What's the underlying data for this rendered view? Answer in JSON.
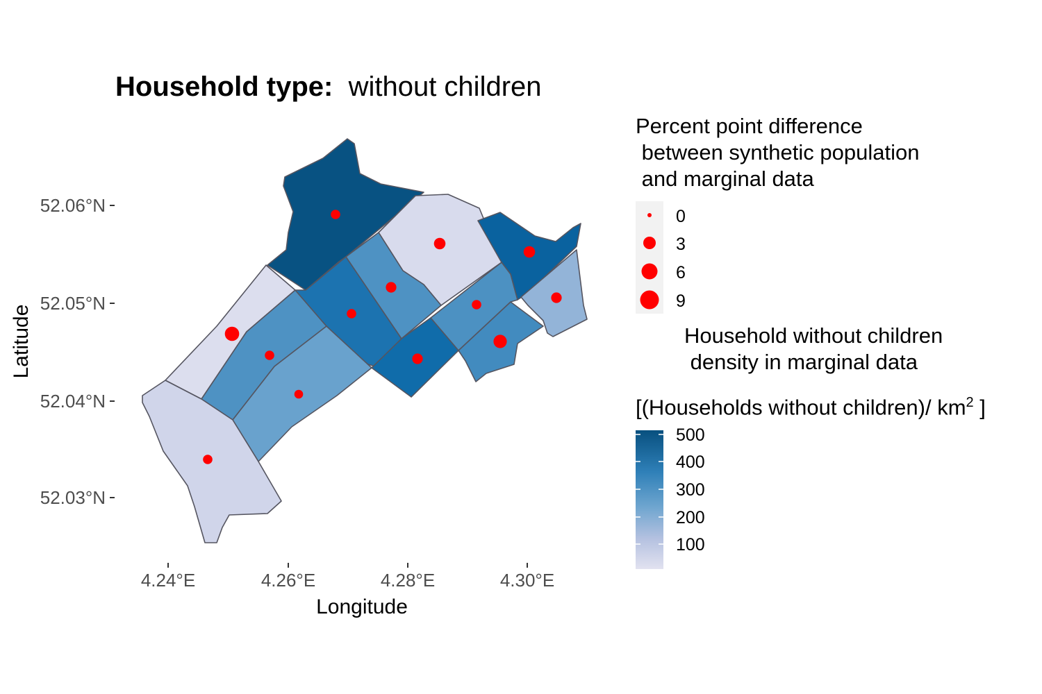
{
  "title": {
    "bold": "Household type:",
    "normal": "without children"
  },
  "axes": {
    "x_label": "Longitude",
    "y_label": "Latitude",
    "x_ticks": [
      "4.24°E",
      "4.26°E",
      "4.28°E",
      "4.30°E"
    ],
    "y_ticks": [
      "52.06°N",
      "52.05°N",
      "52.04°N",
      "52.03°N"
    ]
  },
  "legend_size": {
    "title_lines": [
      "Percent point difference",
      " between synthetic population",
      " and marginal data"
    ],
    "entries": [
      "0",
      "3",
      "6",
      "9"
    ]
  },
  "legend_fill": {
    "title_lines": [
      "Household without children",
      " density in marginal data"
    ],
    "unit_prefix": "[(Households without children)/ km",
    "unit_sup": "2",
    "unit_suffix": " ]",
    "ticks": [
      "500",
      "400",
      "300",
      "200",
      "100"
    ],
    "color_low": "#e2e2f0",
    "color_high": "#08507f"
  },
  "chart_data": {
    "type": "map",
    "xlim": [
      4.235,
      4.311
    ],
    "ylim": [
      52.024,
      52.068
    ],
    "fill_range": [
      0,
      520
    ],
    "point_color": "#ff0000",
    "districts": [
      {
        "density": 515,
        "diff": 1.5
      },
      {
        "density": 25,
        "diff": 3.5
      },
      {
        "density": 460,
        "diff": 3.5
      },
      {
        "density": 170,
        "diff": 2.5
      },
      {
        "density": 15,
        "diff": 7.5
      },
      {
        "density": 300,
        "diff": 1.5
      },
      {
        "density": 405,
        "diff": 1.5
      },
      {
        "density": 300,
        "diff": 2.5
      },
      {
        "density": 245,
        "diff": 1
      },
      {
        "density": 430,
        "diff": 2.5
      },
      {
        "density": 325,
        "diff": 6
      },
      {
        "density": 305,
        "diff": 1.5
      },
      {
        "density": 45,
        "diff": 1.5
      }
    ]
  }
}
